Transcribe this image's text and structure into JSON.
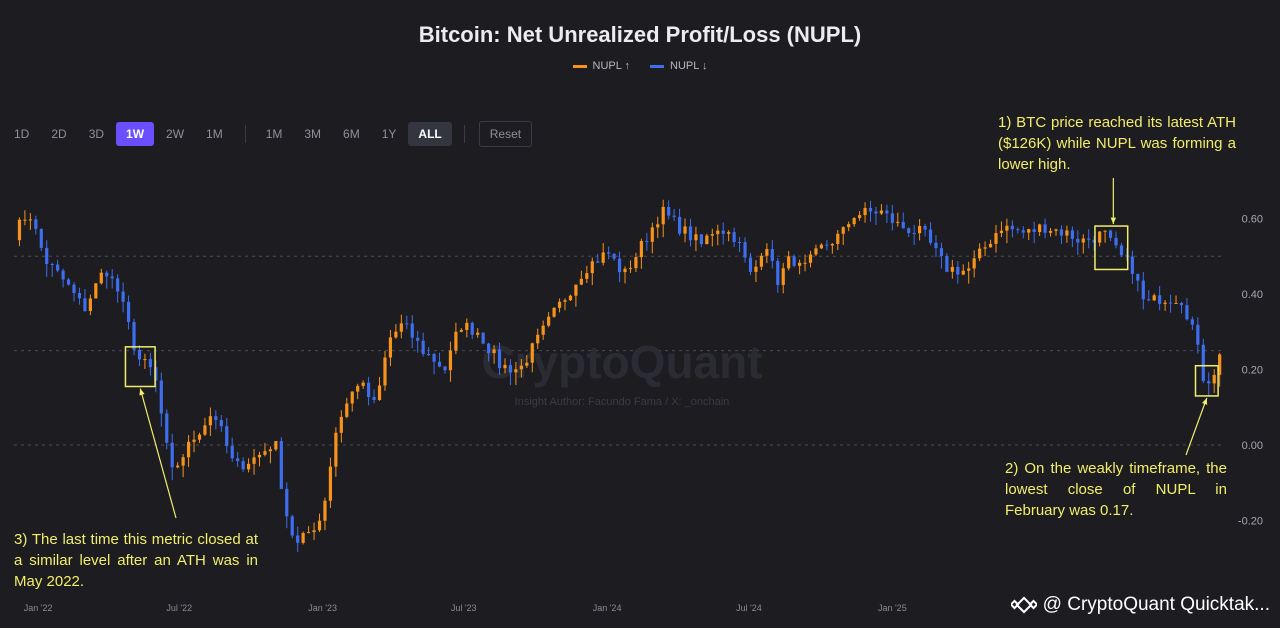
{
  "title": "Bitcoin: Net Unrealized Profit/Loss (NUPL)",
  "legend": [
    {
      "label": "NUPL ↑",
      "color": "#f7931a"
    },
    {
      "label": "NUPL ↓",
      "color": "#3d6ef0"
    }
  ],
  "toolbar": {
    "timeframes": [
      "1D",
      "2D",
      "3D",
      "1W",
      "2W",
      "1M"
    ],
    "selected_timeframe": "1W",
    "ranges": [
      "1M",
      "3M",
      "6M",
      "1Y",
      "ALL"
    ],
    "selected_range": "ALL",
    "reset_label": "Reset"
  },
  "watermark": {
    "brand": "CryptoQuant",
    "author": "Insight Author: Facundo Fama / X: _onchain"
  },
  "annotations": {
    "note1": "1) BTC price reached its latest ATH ($126K) while NUPL was forming a lower high.",
    "note2": "2) On the weakly timeframe, the lowest close of NUPL in February was 0.17.",
    "note3": "3) The last time this metric closed at a similar level after an ATH was in May 2022."
  },
  "footer": "@ CryptoQuant Quicktak...",
  "colors": {
    "up": "#f7931a",
    "down": "#3d6ef0",
    "annotation": "#f2ee6a",
    "background": "#1c1c21"
  },
  "chart_data": {
    "type": "candlestick",
    "series_names": [
      "NUPL ↑",
      "NUPL ↓"
    ],
    "x_ticks": [
      "Jan '22",
      "Jul '22",
      "Jan '23",
      "Jul '23",
      "Jan '24",
      "Jul '24",
      "Jan '25"
    ],
    "x_range": [
      "2021-12-01",
      "2026-02-28"
    ],
    "y_ticks": [
      0.6,
      0.4,
      0.2,
      0.0,
      -0.2
    ],
    "y_tick_labels": [
      "0.60",
      "0.40",
      "0.20",
      "0.00",
      "-0.20"
    ],
    "ylim": [
      -0.3,
      0.68
    ],
    "reference_lines": [
      0.5,
      0.25,
      0.0
    ],
    "anchors": [
      [
        "2021-12-01",
        0.56
      ],
      [
        "2021-12-20",
        0.62
      ],
      [
        "2022-01-10",
        0.49
      ],
      [
        "2022-02-05",
        0.43
      ],
      [
        "2022-03-01",
        0.36
      ],
      [
        "2022-03-28",
        0.47
      ],
      [
        "2022-04-15",
        0.4
      ],
      [
        "2022-05-09",
        0.23
      ],
      [
        "2022-05-30",
        0.19
      ],
      [
        "2022-06-13",
        0.02
      ],
      [
        "2022-06-20",
        -0.08
      ],
      [
        "2022-07-20",
        0.02
      ],
      [
        "2022-08-14",
        0.09
      ],
      [
        "2022-09-10",
        -0.06
      ],
      [
        "2022-10-10",
        -0.03
      ],
      [
        "2022-11-01",
        0.01
      ],
      [
        "2022-11-14",
        -0.17
      ],
      [
        "2022-11-28",
        -0.27
      ],
      [
        "2022-12-31",
        -0.19
      ],
      [
        "2023-01-20",
        0.06
      ],
      [
        "2023-02-16",
        0.17
      ],
      [
        "2023-03-10",
        0.1
      ],
      [
        "2023-03-27",
        0.28
      ],
      [
        "2023-04-14",
        0.32
      ],
      [
        "2023-05-10",
        0.25
      ],
      [
        "2023-06-08",
        0.2
      ],
      [
        "2023-06-26",
        0.32
      ],
      [
        "2023-07-20",
        0.3
      ],
      [
        "2023-08-17",
        0.21
      ],
      [
        "2023-09-11",
        0.2
      ],
      [
        "2023-10-22",
        0.34
      ],
      [
        "2023-12-04",
        0.47
      ],
      [
        "2024-01-02",
        0.51
      ],
      [
        "2024-01-23",
        0.45
      ],
      [
        "2024-02-15",
        0.53
      ],
      [
        "2024-03-11",
        0.62
      ],
      [
        "2024-04-01",
        0.58
      ],
      [
        "2024-05-01",
        0.53
      ],
      [
        "2024-05-20",
        0.58
      ],
      [
        "2024-06-15",
        0.55
      ],
      [
        "2024-07-05",
        0.44
      ],
      [
        "2024-07-22",
        0.55
      ],
      [
        "2024-08-05",
        0.43
      ],
      [
        "2024-08-25",
        0.5
      ],
      [
        "2024-09-07",
        0.46
      ],
      [
        "2024-10-01",
        0.52
      ],
      [
        "2024-10-29",
        0.56
      ],
      [
        "2024-11-12",
        0.61
      ],
      [
        "2024-12-16",
        0.62
      ],
      [
        "2025-01-10",
        0.58
      ],
      [
        "2025-02-10",
        0.56
      ],
      [
        "2025-03-10",
        0.47
      ],
      [
        "2025-04-07",
        0.46
      ],
      [
        "2025-05-20",
        0.58
      ],
      [
        "2025-06-22",
        0.56
      ],
      [
        "2025-07-14",
        0.58
      ],
      [
        "2025-08-14",
        0.56
      ],
      [
        "2025-09-01",
        0.54
      ],
      [
        "2025-09-30",
        0.56
      ],
      [
        "2025-10-06",
        0.54
      ],
      [
        "2025-10-20",
        0.5
      ],
      [
        "2025-11-05",
        0.47
      ],
      [
        "2025-11-21",
        0.37
      ],
      [
        "2025-12-10",
        0.39
      ],
      [
        "2026-01-06",
        0.39
      ],
      [
        "2026-01-22",
        0.31
      ],
      [
        "2026-02-05",
        0.17
      ],
      [
        "2026-02-15",
        0.18
      ],
      [
        "2026-02-28",
        0.25
      ]
    ]
  }
}
